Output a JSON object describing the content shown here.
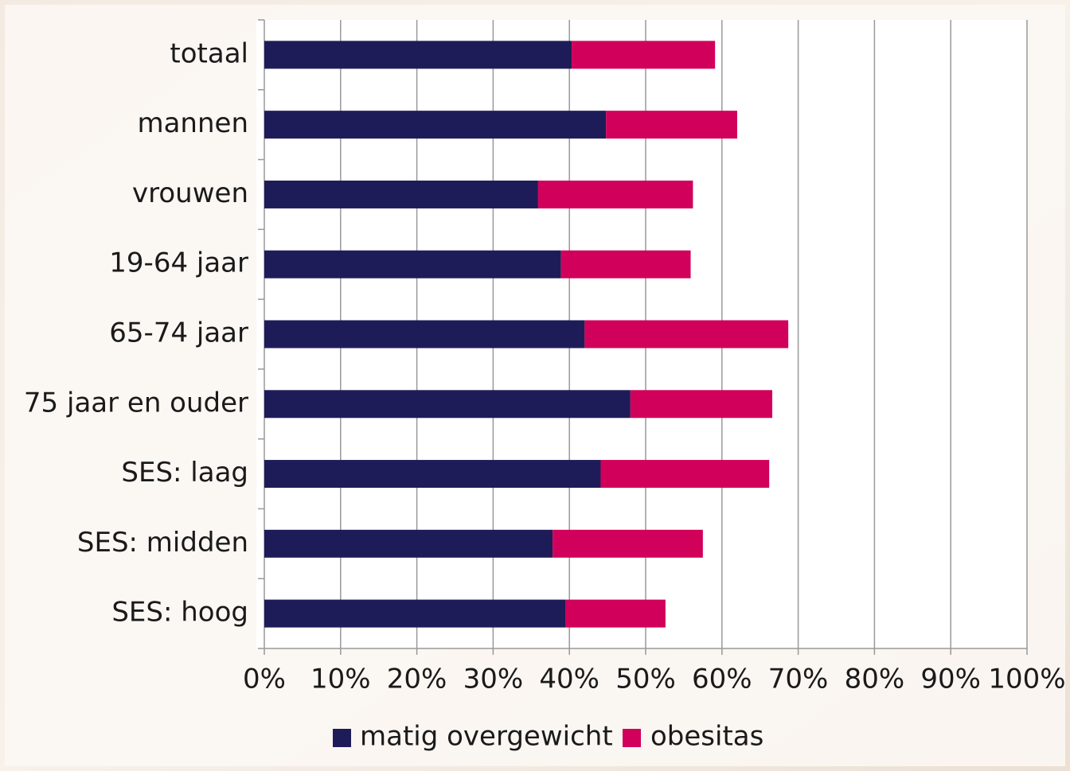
{
  "chart_data": {
    "type": "stacked-barh",
    "categories": [
      "totaal",
      "mannen",
      "vrouwen",
      "19-64 jaar",
      "65-74 jaar",
      "75 jaar en ouder",
      "SES: laag",
      "SES: midden",
      "SES: hoog"
    ],
    "series": [
      {
        "name": "matig overgewicht",
        "color": "#1e1c58",
        "values": [
          40.3,
          44.8,
          35.9,
          38.9,
          42.0,
          48.0,
          44.1,
          37.8,
          39.5
        ]
      },
      {
        "name": "obesitas",
        "color": "#d1005b",
        "values": [
          18.8,
          17.2,
          20.3,
          17.0,
          26.7,
          18.6,
          22.1,
          19.7,
          13.1
        ]
      }
    ],
    "xlim": [
      0,
      100
    ],
    "xticks": [
      {
        "value": 0,
        "label": "0%"
      },
      {
        "value": 10,
        "label": "10%"
      },
      {
        "value": 20,
        "label": "20%"
      },
      {
        "value": 30,
        "label": "30%"
      },
      {
        "value": 40,
        "label": "40%"
      },
      {
        "value": 50,
        "label": "50%"
      },
      {
        "value": 60,
        "label": "60%"
      },
      {
        "value": 70,
        "label": "70%"
      },
      {
        "value": 80,
        "label": "80%"
      },
      {
        "value": 90,
        "label": "90%"
      },
      {
        "value": 100,
        "label": "100%"
      }
    ],
    "grid": true
  }
}
